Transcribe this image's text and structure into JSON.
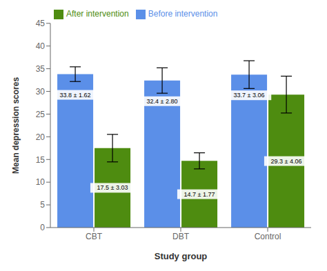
{
  "chart_data": {
    "type": "bar",
    "categories": [
      "CBT",
      "DBT",
      "Control"
    ],
    "series": [
      {
        "name": "Before intervention",
        "color": "#5B8FE8",
        "values": [
          33.8,
          32.4,
          33.7
        ],
        "errors": [
          1.62,
          2.8,
          3.06
        ],
        "value_labels": [
          "33.8 ± 1.62",
          "32.4 ± 2.80",
          "33.7 ± 3.06"
        ]
      },
      {
        "name": "After intervention",
        "color": "#4E8C10",
        "values": [
          17.5,
          14.7,
          29.3
        ],
        "errors": [
          3.03,
          1.77,
          4.06
        ],
        "value_labels": [
          "17.5 ± 3.03",
          "14.7 ± 1.77",
          "29.3 ± 4.06"
        ]
      }
    ],
    "xlabel": "Study group",
    "ylabel": "Mean depression scores",
    "ylim": [
      0,
      45
    ],
    "yticks": [
      0,
      5,
      10,
      15,
      20,
      25,
      30,
      35,
      40,
      45
    ],
    "legend": "upper left",
    "grid": false,
    "data_labels": true
  }
}
